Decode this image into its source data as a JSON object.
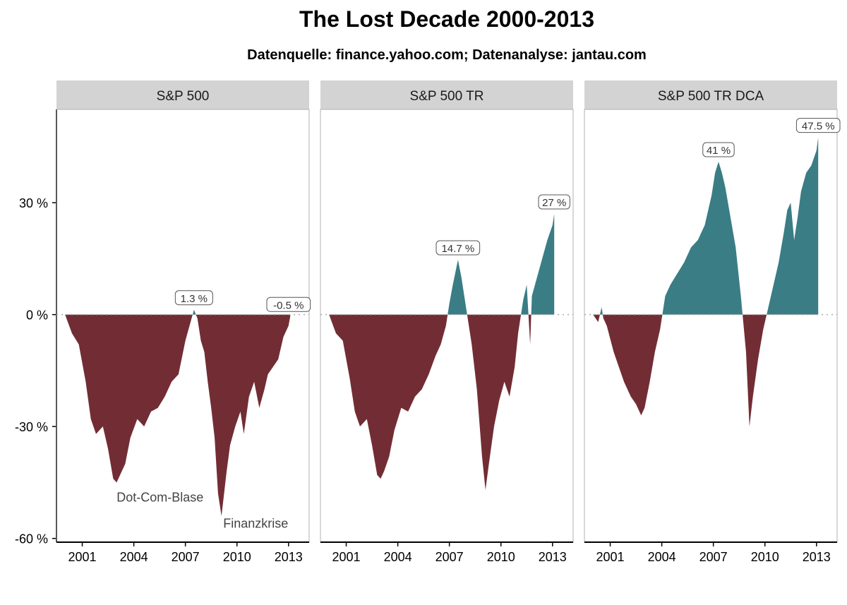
{
  "colors": {
    "positive": "#3a7d85",
    "negative": "#722d34",
    "strip": "#d3d3d3",
    "zero_line": "#aaaaaa"
  },
  "chart_data": {
    "type": "area",
    "title": "The Lost Decade 2000-2013",
    "subtitle": "Datenquelle: finance.yahoo.com; Datenanalyse: jantau.com",
    "xlabel": "",
    "ylabel": "",
    "xlim": [
      1999.5,
      2014.2
    ],
    "ylim": [
      -61,
      55
    ],
    "x_ticks": [
      2001,
      2004,
      2007,
      2010,
      2013
    ],
    "x_tick_labels": [
      "2001",
      "2004",
      "2007",
      "2010",
      "2013"
    ],
    "y_ticks": [
      30,
      0,
      -30,
      -60
    ],
    "y_tick_labels": [
      "30 %",
      "0 %",
      "-30 %",
      "-60 %"
    ],
    "facets": [
      {
        "name": "S&P 500",
        "series": {
          "x": [
            2000.0,
            2000.4,
            2000.8,
            2001.2,
            2001.5,
            2001.8,
            2002.2,
            2002.5,
            2002.8,
            2003.0,
            2003.2,
            2003.5,
            2003.8,
            2004.2,
            2004.6,
            2005.0,
            2005.4,
            2005.8,
            2006.2,
            2006.6,
            2007.0,
            2007.3,
            2007.5,
            2007.7,
            2007.9,
            2008.1,
            2008.3,
            2008.5,
            2008.7,
            2008.9,
            2009.1,
            2009.2,
            2009.4,
            2009.6,
            2009.9,
            2010.2,
            2010.4,
            2010.7,
            2011.0,
            2011.3,
            2011.6,
            2011.8,
            2012.1,
            2012.4,
            2012.7,
            2013.0,
            2013.1
          ],
          "y": [
            0,
            -5,
            -8,
            -18,
            -28,
            -32,
            -30,
            -36,
            -44,
            -45,
            -43,
            -40,
            -33,
            -28,
            -30,
            -26,
            -25,
            -22,
            -18,
            -16,
            -7,
            -2,
            1.3,
            -1,
            -7,
            -10,
            -18,
            -25,
            -33,
            -48,
            -54,
            -50,
            -42,
            -35,
            -30,
            -26,
            -32,
            -22,
            -18,
            -25,
            -20,
            -16,
            -14,
            -12,
            -6,
            -3,
            -0.5
          ]
        },
        "labels": [
          {
            "x": 2007.5,
            "y": 1.3,
            "text": "1.3 %"
          },
          {
            "x": 2013.0,
            "y": -0.5,
            "text": "-0.5 %"
          }
        ],
        "annotations": [
          {
            "x": 2003.0,
            "y": -49,
            "text": "Dot-Com-Blase"
          },
          {
            "x": 2009.2,
            "y": -56,
            "text": "Finanzkrise"
          }
        ]
      },
      {
        "name": "S&P 500 TR",
        "series": {
          "x": [
            2000.0,
            2000.4,
            2000.8,
            2001.2,
            2001.5,
            2001.8,
            2002.2,
            2002.5,
            2002.8,
            2003.0,
            2003.2,
            2003.5,
            2003.8,
            2004.2,
            2004.6,
            2005.0,
            2005.4,
            2005.8,
            2006.2,
            2006.5,
            2006.8,
            2007.0,
            2007.2,
            2007.5,
            2007.7,
            2007.9,
            2008.1,
            2008.3,
            2008.6,
            2008.9,
            2009.1,
            2009.3,
            2009.6,
            2009.9,
            2010.2,
            2010.5,
            2010.8,
            2011.0,
            2011.3,
            2011.5,
            2011.7,
            2011.8,
            2012.1,
            2012.4,
            2012.7,
            2013.0,
            2013.1
          ],
          "y": [
            0,
            -5,
            -7,
            -17,
            -26,
            -30,
            -28,
            -35,
            -43,
            -44,
            -42,
            -38,
            -31,
            -25,
            -26,
            -22,
            -20,
            -16,
            -11,
            -8,
            -3,
            3,
            8,
            14.7,
            10,
            4,
            -2,
            -8,
            -20,
            -38,
            -47,
            -40,
            -30,
            -23,
            -18,
            -22,
            -14,
            -5,
            4,
            8,
            -8,
            5,
            10,
            15,
            20,
            24,
            27
          ]
        },
        "labels": [
          {
            "x": 2007.5,
            "y": 14.7,
            "text": "14.7 %"
          },
          {
            "x": 2013.1,
            "y": 27,
            "text": "27 %"
          }
        ],
        "annotations": []
      },
      {
        "name": "S&P 500 TR DCA",
        "series": {
          "x": [
            2000.0,
            2000.3,
            2000.5,
            2000.6,
            2000.8,
            2001.2,
            2001.5,
            2001.8,
            2002.2,
            2002.5,
            2002.8,
            2003.0,
            2003.3,
            2003.6,
            2003.9,
            2004.2,
            2004.5,
            2004.9,
            2005.3,
            2005.7,
            2006.1,
            2006.5,
            2006.9,
            2007.1,
            2007.3,
            2007.5,
            2007.7,
            2008.0,
            2008.3,
            2008.6,
            2008.9,
            2009.1,
            2009.3,
            2009.6,
            2009.9,
            2010.2,
            2010.5,
            2010.8,
            2011.1,
            2011.3,
            2011.5,
            2011.7,
            2011.9,
            2012.1,
            2012.4,
            2012.7,
            2013.0,
            2013.1
          ],
          "y": [
            0,
            -2,
            2,
            -1,
            -3,
            -10,
            -14,
            -18,
            -22,
            -24,
            -27,
            -25,
            -18,
            -10,
            -4,
            5,
            8,
            11,
            14,
            18,
            20,
            24,
            32,
            38,
            41,
            38,
            34,
            26,
            18,
            5,
            -10,
            -30,
            -22,
            -12,
            -4,
            2,
            8,
            14,
            22,
            28,
            30,
            20,
            26,
            33,
            38,
            40,
            44,
            47.5
          ]
        },
        "labels": [
          {
            "x": 2007.3,
            "y": 41,
            "text": "41 %"
          },
          {
            "x": 2013.1,
            "y": 47.5,
            "text": "47.5 %"
          }
        ],
        "annotations": []
      }
    ]
  }
}
